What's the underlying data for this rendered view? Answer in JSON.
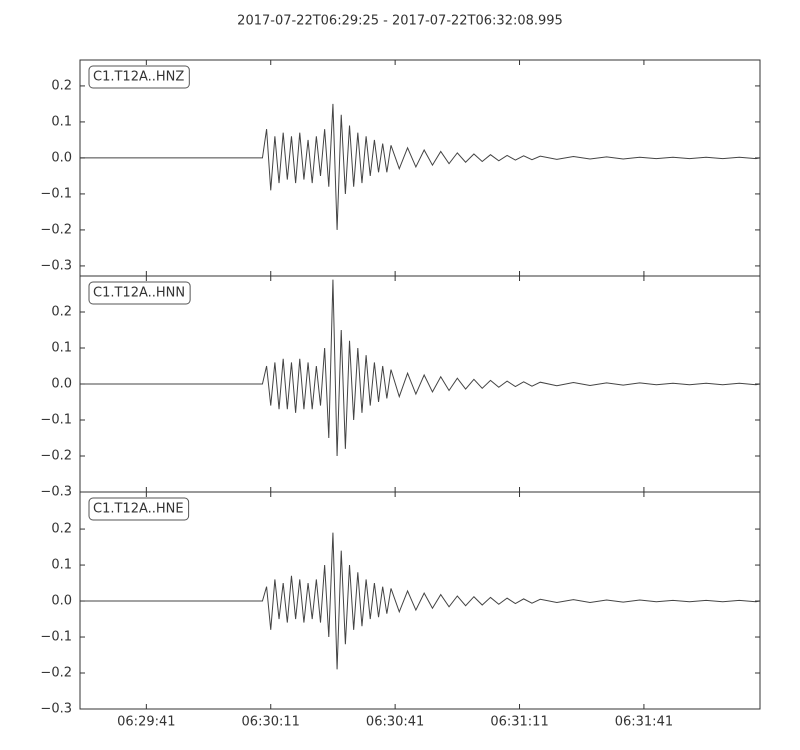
{
  "chart_data": [
    {
      "type": "line",
      "title": "2017-07-22T06:29:25  -  2017-07-22T06:32:08.995",
      "x": [
        0,
        44,
        45,
        46,
        47,
        48,
        49,
        50,
        51,
        52,
        53,
        54,
        55,
        56,
        57,
        58,
        59,
        60,
        61,
        62,
        63,
        64,
        65,
        66,
        67,
        68,
        69,
        70,
        71,
        72,
        73,
        74,
        75,
        77,
        79,
        81,
        83,
        85,
        87,
        89,
        91,
        93,
        95,
        97,
        99,
        101,
        103,
        105,
        107,
        109,
        111,
        115,
        119,
        123,
        127,
        131,
        135,
        139,
        143,
        147,
        151,
        155,
        159,
        163,
        163.9
      ],
      "series": [
        {
          "name": "C1.T12A..HNZ",
          "color": "#444444",
          "values": [
            0,
            0,
            0.08,
            -0.09,
            0.06,
            -0.07,
            0.07,
            -0.06,
            0.06,
            -0.07,
            0.07,
            -0.06,
            0.05,
            -0.07,
            0.06,
            -0.05,
            0.08,
            -0.08,
            0.15,
            -0.2,
            0.12,
            -0.1,
            0.09,
            -0.08,
            0.07,
            -0.07,
            0.06,
            -0.05,
            0.05,
            -0.04,
            0.04,
            -0.04,
            0.035,
            -0.03,
            0.028,
            -0.025,
            0.022,
            -0.02,
            0.018,
            -0.016,
            0.014,
            -0.012,
            0.011,
            -0.01,
            0.009,
            -0.008,
            0.007,
            -0.006,
            0.006,
            -0.005,
            0.005,
            -0.004,
            0.004,
            -0.003,
            0.003,
            -0.003,
            0.002,
            -0.002,
            0.002,
            -0.002,
            0.002,
            -0.002,
            0.002,
            -0.002,
            0
          ]
        }
      ],
      "xlim": [
        0,
        163.995
      ],
      "ylim": [
        -0.328,
        0.272
      ],
      "yticks": [
        {
          "value": -0.3,
          "label": "−0.3"
        },
        {
          "value": -0.2,
          "label": "−0.2"
        },
        {
          "value": -0.1,
          "label": "−0.1"
        },
        {
          "value": 0,
          "label": "0.0"
        },
        0.1,
        0.2
      ]
    },
    {
      "type": "line",
      "x": [
        0,
        44,
        45,
        46,
        47,
        48,
        49,
        50,
        51,
        52,
        53,
        54,
        55,
        56,
        57,
        58,
        59,
        60,
        61,
        62,
        63,
        64,
        65,
        66,
        67,
        68,
        69,
        70,
        71,
        72,
        73,
        74,
        75,
        77,
        79,
        81,
        83,
        85,
        87,
        89,
        91,
        93,
        95,
        97,
        99,
        101,
        103,
        105,
        107,
        109,
        111,
        115,
        119,
        123,
        127,
        131,
        135,
        139,
        143,
        147,
        151,
        155,
        159,
        163,
        163.9
      ],
      "series": [
        {
          "name": "C1.T12A..HNN",
          "color": "#444444",
          "values": [
            0,
            0,
            0.05,
            -0.06,
            0.06,
            -0.07,
            0.07,
            -0.07,
            0.06,
            -0.08,
            0.07,
            -0.07,
            0.06,
            -0.07,
            0.05,
            -0.06,
            0.1,
            -0.15,
            0.29,
            -0.2,
            0.15,
            -0.18,
            0.12,
            -0.1,
            0.1,
            -0.08,
            0.08,
            -0.06,
            0.06,
            -0.05,
            0.05,
            -0.04,
            0.04,
            -0.035,
            0.03,
            -0.028,
            0.025,
            -0.022,
            0.02,
            -0.018,
            0.016,
            -0.014,
            0.013,
            -0.012,
            0.01,
            -0.009,
            0.008,
            -0.007,
            0.006,
            -0.006,
            0.005,
            -0.005,
            0.004,
            -0.004,
            0.003,
            -0.003,
            0.003,
            -0.002,
            0.002,
            -0.002,
            0.002,
            -0.002,
            0.002,
            -0.002,
            0
          ]
        }
      ],
      "xlim": [
        0,
        163.995
      ],
      "ylim": [
        -0.3,
        0.3
      ],
      "yticks": [
        {
          "value": -0.3,
          "label": "−0.3"
        },
        {
          "value": -0.2,
          "label": "−0.2"
        },
        {
          "value": -0.1,
          "label": "−0.1"
        },
        {
          "value": 0,
          "label": "0.0"
        },
        0.1,
        0.2
      ]
    },
    {
      "type": "line",
      "x": [
        0,
        44,
        45,
        46,
        47,
        48,
        49,
        50,
        51,
        52,
        53,
        54,
        55,
        56,
        57,
        58,
        59,
        60,
        61,
        62,
        63,
        64,
        65,
        66,
        67,
        68,
        69,
        70,
        71,
        72,
        73,
        74,
        75,
        77,
        79,
        81,
        83,
        85,
        87,
        89,
        91,
        93,
        95,
        97,
        99,
        101,
        103,
        105,
        107,
        109,
        111,
        115,
        119,
        123,
        127,
        131,
        135,
        139,
        143,
        147,
        151,
        155,
        159,
        163,
        163.9
      ],
      "series": [
        {
          "name": "C1.T12A..HNE",
          "color": "#444444",
          "values": [
            0,
            0,
            0.04,
            -0.08,
            0.06,
            -0.05,
            0.05,
            -0.06,
            0.07,
            -0.05,
            0.06,
            -0.06,
            0.05,
            -0.05,
            0.06,
            -0.06,
            0.1,
            -0.1,
            0.19,
            -0.19,
            0.14,
            -0.12,
            0.1,
            -0.08,
            0.08,
            -0.07,
            0.06,
            -0.05,
            0.05,
            -0.045,
            0.04,
            -0.035,
            0.035,
            -0.03,
            0.028,
            -0.025,
            0.022,
            -0.02,
            0.018,
            -0.016,
            0.014,
            -0.013,
            0.012,
            -0.011,
            0.01,
            -0.009,
            0.008,
            -0.007,
            0.006,
            -0.006,
            0.005,
            -0.004,
            0.004,
            -0.004,
            0.003,
            -0.003,
            0.003,
            -0.002,
            0.002,
            -0.002,
            0.002,
            -0.002,
            0.002,
            -0.002,
            0
          ]
        }
      ],
      "xlim": [
        0,
        163.995
      ],
      "ylim": [
        -0.3,
        0.303
      ],
      "yticks": [
        {
          "value": -0.3,
          "label": "−0.3"
        },
        {
          "value": -0.2,
          "label": "−0.2"
        },
        {
          "value": -0.1,
          "label": "−0.1"
        },
        {
          "value": 0,
          "label": "0.0"
        },
        0.1,
        0.2
      ],
      "xticks": [
        {
          "value": 16,
          "label": "06:29:41"
        },
        {
          "value": 46,
          "label": "06:30:11"
        },
        {
          "value": 76,
          "label": "06:30:41"
        },
        {
          "value": 106,
          "label": "06:31:11"
        },
        {
          "value": 136,
          "label": "06:31:41"
        }
      ]
    }
  ]
}
